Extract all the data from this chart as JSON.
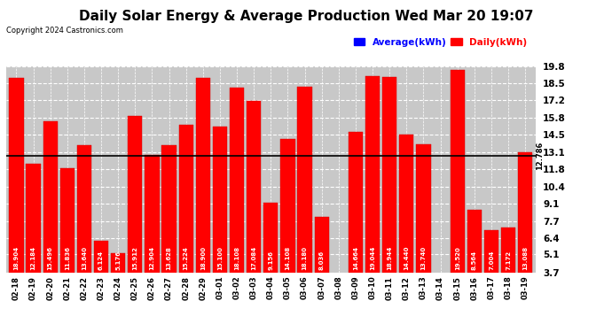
{
  "title": "Daily Solar Energy & Average Production Wed Mar 20 19:07",
  "copyright": "Copyright 2024 Castronics.com",
  "categories": [
    "02-18",
    "02-19",
    "02-20",
    "02-21",
    "02-22",
    "02-23",
    "02-24",
    "02-25",
    "02-26",
    "02-27",
    "02-28",
    "02-29",
    "03-01",
    "03-02",
    "03-03",
    "03-04",
    "03-05",
    "03-06",
    "03-07",
    "03-08",
    "03-09",
    "03-10",
    "03-11",
    "03-12",
    "03-13",
    "03-14",
    "03-15",
    "03-16",
    "03-17",
    "03-18",
    "03-19"
  ],
  "values": [
    18.904,
    12.184,
    15.496,
    11.836,
    13.64,
    6.124,
    5.176,
    15.912,
    12.904,
    13.628,
    15.224,
    18.9,
    15.1,
    18.108,
    17.084,
    9.156,
    14.108,
    18.18,
    8.036,
    0.0,
    14.664,
    19.044,
    18.944,
    14.44,
    13.74,
    0.0,
    19.52,
    8.564,
    7.004,
    7.172,
    13.088
  ],
  "average": 12.786,
  "bar_color": "#FF0000",
  "average_line_color": "#000000",
  "average_label_color": "#0000FF",
  "daily_label_color": "#FF0000",
  "yticks": [
    3.7,
    5.1,
    6.4,
    7.7,
    9.1,
    10.4,
    11.8,
    13.1,
    14.5,
    15.8,
    17.2,
    18.5,
    19.8
  ],
  "ymin": 3.7,
  "ymax": 19.8,
  "background_color": "#FFFFFF",
  "plot_bg_color": "#C8C8C8",
  "grid_color": "#FFFFFF",
  "title_fontsize": 11,
  "bar_edge_color": "#CC0000",
  "legend_avg_label": "Average(kWh)",
  "legend_daily_label": "Daily(kWh)"
}
